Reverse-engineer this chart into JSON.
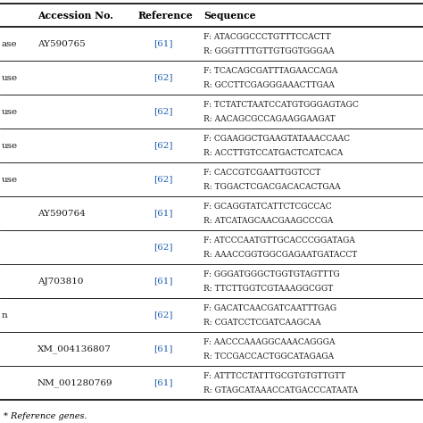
{
  "headers": [
    "Accession No.",
    "Reference",
    "Sequence"
  ],
  "rows": [
    {
      "gene_suffix": "ase",
      "accession": "AY590765",
      "reference": "[61]",
      "sequence_f": "F: ATACGGCCCTGTTTCCACTT",
      "sequence_r": "R: GGGTTTTGTTGTGGTGGGAA"
    },
    {
      "gene_suffix": "use",
      "accession": "",
      "reference": "[62]",
      "sequence_f": "F: TCACAGCGATTTAGAACCAGA",
      "sequence_r": "R: GCCTTCGAGGGAAACTTGAA"
    },
    {
      "gene_suffix": "use",
      "accession": "",
      "reference": "[62]",
      "sequence_f": "F: TCTATCTAATCCATGTGGGAGTAGC",
      "sequence_r": "R: AACAGCGCCAGAAGGAAGAT"
    },
    {
      "gene_suffix": "use",
      "accession": "",
      "reference": "[62]",
      "sequence_f": "F: CGAAGGCTGAAGTATAAACCAAC",
      "sequence_r": "R: ACCTTGTCCATGACTCATCACA"
    },
    {
      "gene_suffix": "use",
      "accession": "",
      "reference": "[62]",
      "sequence_f": "F: CACCGTCGAATTGGTCCT",
      "sequence_r": "R: TGGACTCGACGACACACTGAA"
    },
    {
      "gene_suffix": "",
      "accession": "AY590764",
      "reference": "[61]",
      "sequence_f": "F: GCAGGTATCATTCTCGCCAC",
      "sequence_r": "R: ATCATAGCAACGAAGCCCGA"
    },
    {
      "gene_suffix": "",
      "accession": "",
      "reference": "[62]",
      "sequence_f": "F: ATCCCAATGTTGCACCCGGATAGA",
      "sequence_r": "R: AAACCGGTGGCGAGAATGATACCT"
    },
    {
      "gene_suffix": "",
      "accession": "AJ703810",
      "reference": "[61]",
      "sequence_f": "F: GGGATGGGCTGGTGTAGTTTG",
      "sequence_r": "R: TTCTTGGTCGTAAAGGCGGT"
    },
    {
      "gene_suffix": "n",
      "accession": "",
      "reference": "[62]",
      "sequence_f": "F: GACATCAACGATCAATTTGAG",
      "sequence_r": "R: CGATCCTCGATCAAGCAA"
    },
    {
      "gene_suffix": "",
      "accession": "XM_004136807",
      "reference": "[61]",
      "sequence_f": "F: AACCCAAAGGCAAACAGGGA",
      "sequence_r": "R: TCCGACCACTGGCATAGAGA"
    },
    {
      "gene_suffix": "",
      "accession": "NM_001280769",
      "reference": "[61]",
      "sequence_f": "F: ATTTCCTATTTGCGTGTGTTGTT",
      "sequence_r": "R: GTAGCATAAACCATGACCCATAATA"
    }
  ],
  "footnote": "* Reference genes.",
  "header_color": "#000000",
  "seq_color": "#1a1a1a",
  "ref_color": "#2060b0",
  "acc_color": "#1a1a1a",
  "gene_color": "#1a1a1a",
  "bg_color": "#ffffff",
  "line_color": "#000000"
}
